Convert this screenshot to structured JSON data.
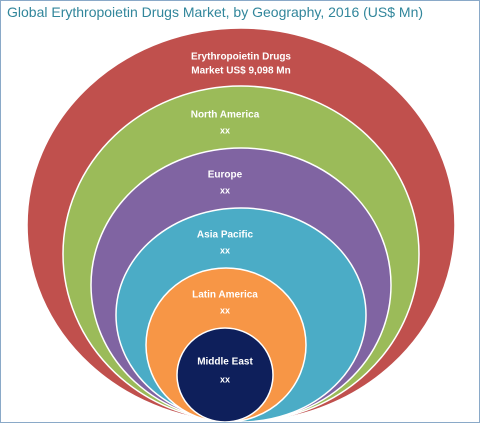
{
  "header": {
    "title": "Global Erythropoietin Drugs Market, by Geography, 2016 (US$ Mn)"
  },
  "rings": [
    {
      "lines": [
        "Erythropoietin Drugs",
        "Market US$ 9,098 Mn"
      ]
    },
    {
      "lines": [
        "North America",
        "xx"
      ]
    },
    {
      "lines": [
        "Europe",
        "xx"
      ]
    },
    {
      "lines": [
        "Asia Pacific",
        "xx"
      ]
    },
    {
      "lines": [
        "Latin America",
        "xx"
      ]
    },
    {
      "lines": [
        "Middle East",
        "xx"
      ]
    }
  ]
}
